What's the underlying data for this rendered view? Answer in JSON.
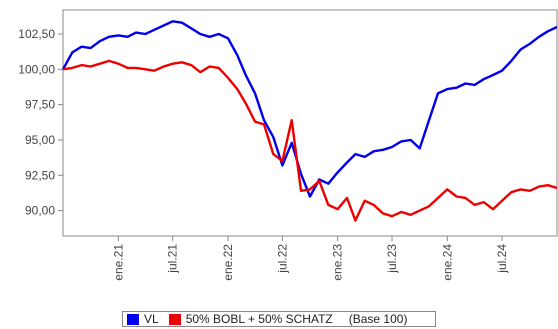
{
  "chart_data": {
    "type": "line",
    "title": "",
    "xlabel": "",
    "ylabel": "",
    "x_tick_labels": [
      "ene.21",
      "jul.21",
      "ene.22",
      "jul.22",
      "ene.23",
      "jul.23",
      "ene.24",
      "jul.24"
    ],
    "y_tick_labels": [
      "90,00",
      "92,50",
      "95,00",
      "97,50",
      "100,00",
      "102,50"
    ],
    "y_ticks": [
      90,
      92.5,
      95,
      97.5,
      100,
      102.5
    ],
    "ylim": [
      88.2,
      104.2
    ],
    "xlim": [
      "2020-07-01",
      "2024-12-31"
    ],
    "grid": false,
    "legend_position": "bottom",
    "base_note": "(Base 100)",
    "series": [
      {
        "name": "VL",
        "color": "#0000ee",
        "points": [
          [
            "2020-07-01",
            100.0
          ],
          [
            "2020-08-01",
            101.2
          ],
          [
            "2020-09-01",
            101.6
          ],
          [
            "2020-10-01",
            101.5
          ],
          [
            "2020-11-01",
            102.0
          ],
          [
            "2020-12-01",
            102.3
          ],
          [
            "2021-01-01",
            102.4
          ],
          [
            "2021-02-01",
            102.3
          ],
          [
            "2021-03-01",
            102.6
          ],
          [
            "2021-04-01",
            102.5
          ],
          [
            "2021-05-01",
            102.8
          ],
          [
            "2021-06-01",
            103.1
          ],
          [
            "2021-07-01",
            103.4
          ],
          [
            "2021-08-01",
            103.3
          ],
          [
            "2021-09-01",
            102.9
          ],
          [
            "2021-10-01",
            102.5
          ],
          [
            "2021-11-01",
            102.3
          ],
          [
            "2021-12-01",
            102.5
          ],
          [
            "2022-01-01",
            102.2
          ],
          [
            "2022-02-01",
            101.0
          ],
          [
            "2022-03-01",
            99.6
          ],
          [
            "2022-04-01",
            98.3
          ],
          [
            "2022-05-01",
            96.4
          ],
          [
            "2022-06-01",
            95.2
          ],
          [
            "2022-07-01",
            93.2
          ],
          [
            "2022-08-01",
            94.8
          ],
          [
            "2022-09-01",
            92.6
          ],
          [
            "2022-10-01",
            91.0
          ],
          [
            "2022-11-01",
            92.2
          ],
          [
            "2022-12-01",
            91.9
          ],
          [
            "2023-01-01",
            92.7
          ],
          [
            "2023-02-01",
            93.4
          ],
          [
            "2023-03-01",
            94.0
          ],
          [
            "2023-04-01",
            93.8
          ],
          [
            "2023-05-01",
            94.2
          ],
          [
            "2023-06-01",
            94.3
          ],
          [
            "2023-07-01",
            94.5
          ],
          [
            "2023-08-01",
            94.9
          ],
          [
            "2023-09-01",
            95.0
          ],
          [
            "2023-10-01",
            94.4
          ],
          [
            "2023-11-01",
            96.4
          ],
          [
            "2023-12-01",
            98.3
          ],
          [
            "2024-01-01",
            98.6
          ],
          [
            "2024-02-01",
            98.7
          ],
          [
            "2024-03-01",
            99.0
          ],
          [
            "2024-04-01",
            98.9
          ],
          [
            "2024-05-01",
            99.3
          ],
          [
            "2024-06-01",
            99.6
          ],
          [
            "2024-07-01",
            99.9
          ],
          [
            "2024-08-01",
            100.6
          ],
          [
            "2024-09-01",
            101.4
          ],
          [
            "2024-10-01",
            101.8
          ],
          [
            "2024-11-01",
            102.3
          ],
          [
            "2024-12-01",
            102.7
          ],
          [
            "2024-12-31",
            103.0
          ]
        ]
      },
      {
        "name": "50% BOBL + 50% SCHATZ",
        "color": "#ee0000",
        "points": [
          [
            "2020-07-01",
            100.0
          ],
          [
            "2020-08-01",
            100.1
          ],
          [
            "2020-09-01",
            100.3
          ],
          [
            "2020-10-01",
            100.2
          ],
          [
            "2020-11-01",
            100.4
          ],
          [
            "2020-12-01",
            100.6
          ],
          [
            "2021-01-01",
            100.4
          ],
          [
            "2021-02-01",
            100.1
          ],
          [
            "2021-03-01",
            100.1
          ],
          [
            "2021-04-01",
            100.0
          ],
          [
            "2021-05-01",
            99.9
          ],
          [
            "2021-06-01",
            100.2
          ],
          [
            "2021-07-01",
            100.4
          ],
          [
            "2021-08-01",
            100.5
          ],
          [
            "2021-09-01",
            100.3
          ],
          [
            "2021-10-01",
            99.8
          ],
          [
            "2021-11-01",
            100.2
          ],
          [
            "2021-12-01",
            100.1
          ],
          [
            "2022-01-01",
            99.4
          ],
          [
            "2022-02-01",
            98.6
          ],
          [
            "2022-03-01",
            97.6
          ],
          [
            "2022-04-01",
            96.3
          ],
          [
            "2022-05-01",
            96.1
          ],
          [
            "2022-06-01",
            94.0
          ],
          [
            "2022-07-01",
            93.5
          ],
          [
            "2022-08-01",
            96.4
          ],
          [
            "2022-09-01",
            91.4
          ],
          [
            "2022-10-01",
            91.5
          ],
          [
            "2022-11-01",
            92.1
          ],
          [
            "2022-12-01",
            90.4
          ],
          [
            "2023-01-01",
            90.1
          ],
          [
            "2023-02-01",
            90.9
          ],
          [
            "2023-03-01",
            89.3
          ],
          [
            "2023-04-01",
            90.7
          ],
          [
            "2023-05-01",
            90.4
          ],
          [
            "2023-06-01",
            89.8
          ],
          [
            "2023-07-01",
            89.6
          ],
          [
            "2023-08-01",
            89.9
          ],
          [
            "2023-09-01",
            89.7
          ],
          [
            "2023-10-01",
            90.0
          ],
          [
            "2023-11-01",
            90.3
          ],
          [
            "2023-12-01",
            90.9
          ],
          [
            "2024-01-01",
            91.5
          ],
          [
            "2024-02-01",
            91.0
          ],
          [
            "2024-03-01",
            90.9
          ],
          [
            "2024-04-01",
            90.4
          ],
          [
            "2024-05-01",
            90.6
          ],
          [
            "2024-06-01",
            90.1
          ],
          [
            "2024-07-01",
            90.7
          ],
          [
            "2024-08-01",
            91.3
          ],
          [
            "2024-09-01",
            91.5
          ],
          [
            "2024-10-01",
            91.4
          ],
          [
            "2024-11-01",
            91.7
          ],
          [
            "2024-12-01",
            91.8
          ],
          [
            "2024-12-31",
            91.6
          ]
        ]
      }
    ]
  }
}
